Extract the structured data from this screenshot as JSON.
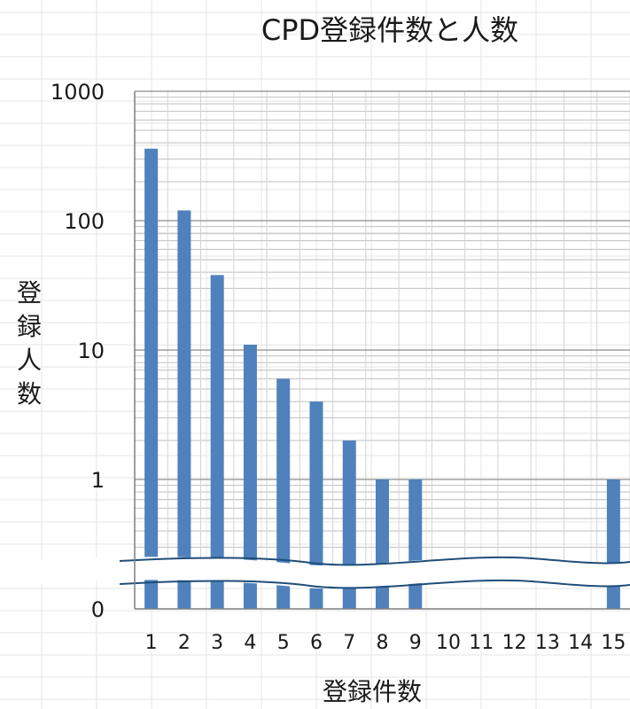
{
  "chart_data": {
    "type": "bar",
    "title": "CPD登録件数と人数",
    "xlabel": "登録件数",
    "ylabel": "登録人数",
    "y_scale": "log",
    "ylim": [
      1,
      1000
    ],
    "axis_break": true,
    "grid": true,
    "legend": "none",
    "bar_color": "#4f81bd",
    "categories": [
      "1",
      "2",
      "3",
      "4",
      "5",
      "6",
      "7",
      "8",
      "9",
      "10",
      "11",
      "12",
      "13",
      "14",
      "15"
    ],
    "y_ticks": [
      "1000",
      "100",
      "10",
      "1",
      "0"
    ],
    "values": [
      360,
      120,
      38,
      11,
      6,
      4,
      2,
      1,
      1,
      0,
      0,
      0,
      0,
      0,
      1
    ]
  }
}
